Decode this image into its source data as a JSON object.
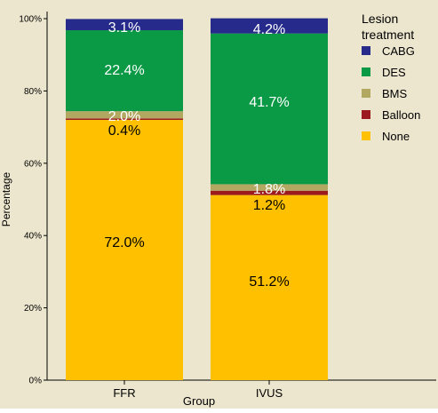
{
  "chart_data": {
    "type": "bar",
    "stacked": true,
    "categories": [
      "FFR",
      "IVUS"
    ],
    "xlabel": "Group",
    "ylabel": "Percentage",
    "ylim": [
      0,
      100
    ],
    "yticks": [
      "0%",
      "20%",
      "40%",
      "60%",
      "80%",
      "100%"
    ],
    "grid": false,
    "background_color": "#ECE6CE",
    "legend": {
      "title": "Lesion treatment",
      "placement": "right"
    },
    "series": [
      {
        "name": "None",
        "color": "#FFC000",
        "values": [
          72.0,
          51.2
        ],
        "labels": [
          "72.0%",
          "51.2%"
        ]
      },
      {
        "name": "Balloon",
        "color": "#9B1B1F",
        "values": [
          0.4,
          1.2
        ],
        "labels": [
          "0.4%",
          "1.2%"
        ]
      },
      {
        "name": "BMS",
        "color": "#B3A862",
        "values": [
          2.0,
          1.8
        ],
        "labels": [
          "2.0%",
          "1.8%"
        ]
      },
      {
        "name": "DES",
        "color": "#0A9A45",
        "values": [
          22.4,
          41.7
        ],
        "labels": [
          "22.4%",
          "41.7%"
        ]
      },
      {
        "name": "CABG",
        "color": "#262B8B",
        "values": [
          3.1,
          4.2
        ],
        "labels": [
          "3.1%",
          "4.2%"
        ]
      }
    ]
  }
}
